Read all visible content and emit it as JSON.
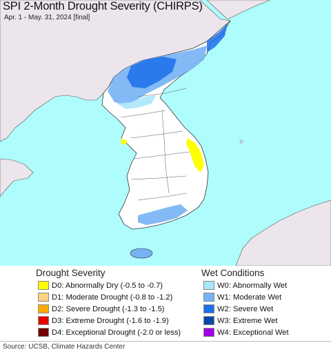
{
  "map": {
    "title": "SPI 2-Month Drought Severity (CHIRPS)",
    "subtitle": "Apr. 1 - May. 31, 2024 [final]",
    "colors": {
      "sea": "#aefcfb",
      "foreign_land": "#ece6ec",
      "land": "#ffffff",
      "border": "#333333"
    }
  },
  "legend": {
    "drought": {
      "title": "Drought Severity",
      "items": [
        {
          "code": "D0",
          "label": "D0: Abnormally Dry (-0.5 to -0.7)",
          "color": "#ffff00"
        },
        {
          "code": "D1",
          "label": "D1: Moderate Drought (-0.8 to -1.2)",
          "color": "#fcd37f"
        },
        {
          "code": "D2",
          "label": "D2: Severe Drought (-1.3 to -1.5)",
          "color": "#ffaa00"
        },
        {
          "code": "D3",
          "label": "D3: Extreme Drought (-1.6 to -1.9)",
          "color": "#e60000"
        },
        {
          "code": "D4",
          "label": "D4: Exceptional Drought (-2.0 or less)",
          "color": "#730000"
        }
      ]
    },
    "wet": {
      "title": "Wet Conditions",
      "items": [
        {
          "code": "W0",
          "label": "W0: Abnormally Wet",
          "color": "#aae7fb"
        },
        {
          "code": "W1",
          "label": "W1: Moderate Wet",
          "color": "#76b3f5"
        },
        {
          "code": "W2",
          "label": "W2: Severe Wet",
          "color": "#1c6ee9"
        },
        {
          "code": "W3",
          "label": "W3: Extreme Wet",
          "color": "#0a47a8"
        },
        {
          "code": "W4",
          "label": "W4: Exceptional Wet",
          "color": "#a200e6"
        }
      ]
    }
  },
  "footer": {
    "source": "Source: UCSB, Climate Hazards Center"
  }
}
